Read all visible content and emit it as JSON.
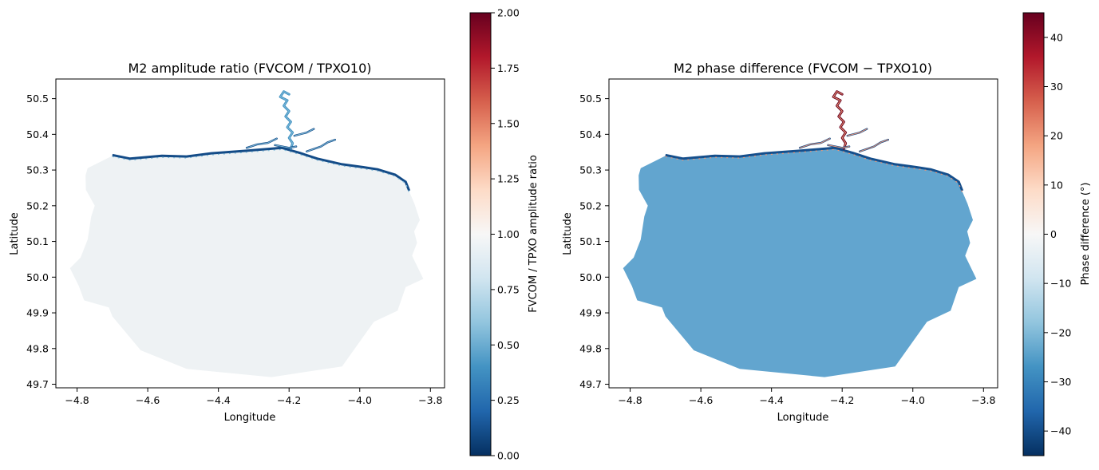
{
  "chart_data": [
    {
      "type": "heatmap",
      "title": "M2 amplitude ratio (FVCOM / TPXO10)",
      "xlabel": "Longitude",
      "ylabel": "Latitude",
      "xlim": [
        -4.86,
        -3.76
      ],
      "ylim": [
        49.69,
        50.555
      ],
      "xticks": [
        -4.8,
        -4.6,
        -4.4,
        -4.2,
        -4.0,
        -3.8
      ],
      "xtick_labels": [
        "−4.8",
        "−4.6",
        "−4.4",
        "−4.2",
        "−4.0",
        "−3.8"
      ],
      "yticks": [
        49.7,
        49.8,
        49.9,
        50.0,
        50.1,
        50.2,
        50.3,
        50.4,
        50.5
      ],
      "ytick_labels": [
        "49.7",
        "49.8",
        "49.9",
        "50.0",
        "50.1",
        "50.2",
        "50.3",
        "50.4",
        "50.5"
      ],
      "grid": false,
      "colormap": "RdBu_r",
      "interior_value": 0.97,
      "interior_color": "#eef2f4",
      "coast_values": [
        0.1,
        0.4,
        0.55
      ],
      "colorbar": {
        "label": "FVCOM / TPXO amplitude ratio",
        "range": [
          0.0,
          2.0
        ],
        "ticks": [
          0.0,
          0.25,
          0.5,
          0.75,
          1.0,
          1.25,
          1.5,
          1.75,
          2.0
        ],
        "tick_labels": [
          "0.00",
          "0.25",
          "0.50",
          "0.75",
          "1.00",
          "1.25",
          "1.50",
          "1.75",
          "2.00"
        ]
      }
    },
    {
      "type": "heatmap",
      "title": "M2 phase difference (FVCOM − TPXO10)",
      "xlabel": "Longitude",
      "ylabel": "Latitude",
      "xlim": [
        -4.86,
        -3.76
      ],
      "ylim": [
        49.69,
        50.555
      ],
      "xticks": [
        -4.8,
        -4.6,
        -4.4,
        -4.2,
        -4.0,
        -3.8
      ],
      "xtick_labels": [
        "−4.8",
        "−4.6",
        "−4.4",
        "−4.2",
        "−4.0",
        "−3.8"
      ],
      "yticks": [
        49.7,
        49.8,
        49.9,
        50.0,
        50.1,
        50.2,
        50.3,
        50.4,
        50.5
      ],
      "ytick_labels": [
        "49.7",
        "49.8",
        "49.9",
        "50.0",
        "50.1",
        "50.2",
        "50.3",
        "50.4",
        "50.5"
      ],
      "grid": false,
      "colormap": "RdBu_r",
      "interior_value": -22,
      "interior_color": "#62a5cf",
      "coast_values": [
        -40,
        45,
        20
      ],
      "colorbar": {
        "label": "Phase difference (°)",
        "range": [
          -45,
          45
        ],
        "ticks": [
          -40,
          -30,
          -20,
          -10,
          0,
          10,
          20,
          30,
          40
        ],
        "tick_labels": [
          "−40",
          "−30",
          "−20",
          "−10",
          "0",
          "10",
          "20",
          "30",
          "40"
        ]
      }
    }
  ]
}
